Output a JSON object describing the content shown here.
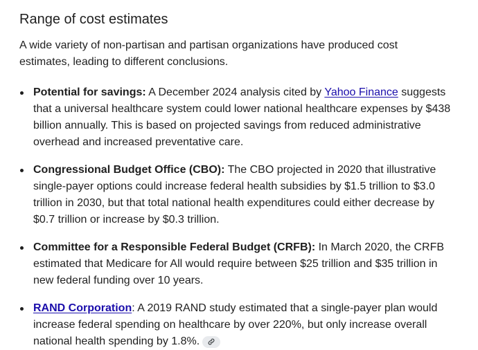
{
  "section": {
    "title": "Range of cost estimates",
    "intro": "A wide variety of non-partisan and partisan organizations have produced cost estimates, leading to different conclusions."
  },
  "bullets": [
    {
      "label": "Potential for savings:",
      "pre_link": " A December 2024 analysis cited by ",
      "link": "Yahoo Finance",
      "post_link": " suggests that a universal healthcare system could lower national healthcare expenses by $438 billion annually. This is based on projected savings from reduced administrative overhead and increased preventative care."
    },
    {
      "label": "Congressional Budget Office (CBO):",
      "text": " The CBO projected in 2020 that illustrative single-payer options could increase federal health subsidies by $1.5 trillion to $3.0 trillion in 2030, but that total national health expenditures could either decrease by $0.7 trillion or increase by $0.3 trillion."
    },
    {
      "label": "Committee for a Responsible Federal Budget (CRFB):",
      "text": " In March 2020, the CRFB estimated that Medicare for All would require between $25 trillion and $35 trillion in new federal funding over 10 years."
    },
    {
      "link": "RAND Corporation",
      "text": ": A 2019 RAND study estimated that a single-payer plan would increase federal spending on healthcare by over 220%, but only increase overall national health spending by 1.8%.",
      "chip_icon": "link-icon"
    }
  ],
  "colors": {
    "text": "#1f1f1f",
    "link": "#1a0dab",
    "chip_bg": "#e8eaed"
  }
}
